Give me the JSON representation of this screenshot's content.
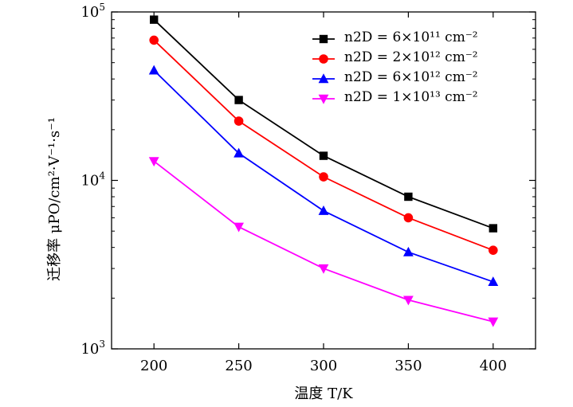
{
  "chart_data": {
    "type": "line",
    "xlabel": "温度 T/K",
    "ylabel": "迁移率 μPO/cm²·V⁻¹·s⁻¹",
    "x": [
      200,
      250,
      300,
      350,
      400
    ],
    "xlim": [
      175,
      425
    ],
    "ylim": [
      1000,
      100000
    ],
    "yscale": "log",
    "xticks": [
      "200",
      "250",
      "300",
      "350",
      "400"
    ],
    "yticks": [
      {
        "base": "10",
        "exp": "3",
        "value": 1000
      },
      {
        "base": "10",
        "exp": "4",
        "value": 10000
      },
      {
        "base": "10",
        "exp": "5",
        "value": 100000
      }
    ],
    "legend_position": "top-right",
    "series": [
      {
        "name": "n2D = 6×10¹¹ cm⁻²",
        "color": "#000000",
        "marker": "square",
        "values": [
          90000,
          30000,
          14000,
          8000,
          5200
        ]
      },
      {
        "name": "n2D = 2×10¹² cm⁻²",
        "color": "#ff0000",
        "marker": "circle",
        "values": [
          68000,
          22500,
          10500,
          6000,
          3850
        ]
      },
      {
        "name": "n2D = 6×10¹² cm⁻²",
        "color": "#0000ff",
        "marker": "triangle-up",
        "values": [
          45000,
          14500,
          6600,
          3750,
          2500
        ]
      },
      {
        "name": "n2D = 1×10¹³ cm⁻²",
        "color": "#ff00ff",
        "marker": "triangle-down",
        "values": [
          13000,
          5300,
          3000,
          1950,
          1450
        ]
      }
    ]
  }
}
